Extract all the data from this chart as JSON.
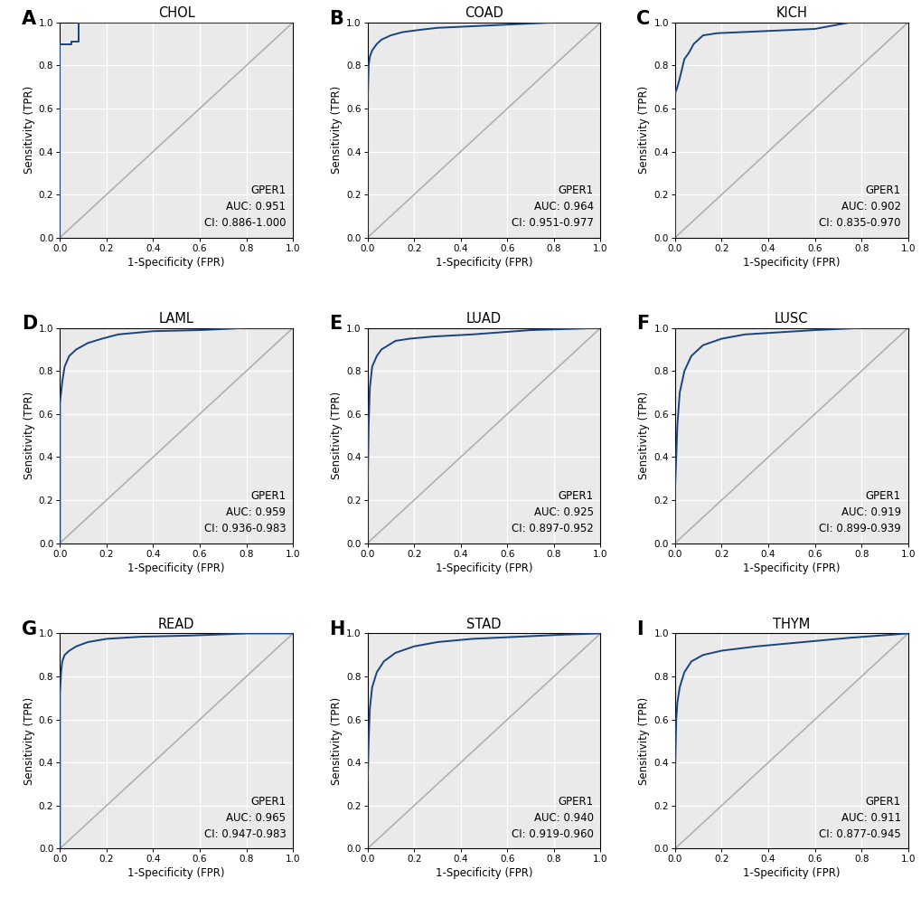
{
  "panels": [
    {
      "label": "A",
      "title": "CHOL",
      "auc": "0.951",
      "ci": "0.886-1.000",
      "roc_fpr": [
        0.0,
        0.0,
        0.0,
        0.0,
        0.05,
        0.05,
        0.08,
        0.08,
        0.25,
        0.25,
        1.0
      ],
      "roc_tpr": [
        0.0,
        0.55,
        0.78,
        0.9,
        0.9,
        0.91,
        0.91,
        1.0,
        1.0,
        1.0,
        1.0
      ]
    },
    {
      "label": "B",
      "title": "COAD",
      "auc": "0.964",
      "ci": "0.951-0.977",
      "roc_fpr": [
        0.0,
        0.0,
        0.003,
        0.005,
        0.01,
        0.02,
        0.04,
        0.06,
        0.1,
        0.15,
        0.22,
        0.3,
        0.5,
        0.8,
        1.0
      ],
      "roc_tpr": [
        0.0,
        0.6,
        0.72,
        0.8,
        0.84,
        0.87,
        0.9,
        0.92,
        0.94,
        0.955,
        0.965,
        0.975,
        0.985,
        1.0,
        1.0
      ]
    },
    {
      "label": "C",
      "title": "KICH",
      "auc": "0.902",
      "ci": "0.835-0.970",
      "roc_fpr": [
        0.0,
        0.0,
        0.01,
        0.02,
        0.04,
        0.06,
        0.08,
        0.12,
        0.18,
        0.6,
        0.75,
        1.0
      ],
      "roc_tpr": [
        0.0,
        0.67,
        0.7,
        0.74,
        0.83,
        0.86,
        0.9,
        0.94,
        0.95,
        0.97,
        1.0,
        1.0
      ]
    },
    {
      "label": "D",
      "title": "LAML",
      "auc": "0.959",
      "ci": "0.936-0.983",
      "roc_fpr": [
        0.0,
        0.0,
        0.01,
        0.02,
        0.04,
        0.07,
        0.12,
        0.18,
        0.25,
        0.4,
        0.6,
        0.8,
        1.0
      ],
      "roc_tpr": [
        0.0,
        0.65,
        0.75,
        0.82,
        0.87,
        0.9,
        0.93,
        0.95,
        0.97,
        0.985,
        0.99,
        1.0,
        1.0
      ]
    },
    {
      "label": "E",
      "title": "LUAD",
      "auc": "0.925",
      "ci": "0.897-0.952",
      "roc_fpr": [
        0.0,
        0.0,
        0.005,
        0.01,
        0.02,
        0.04,
        0.06,
        0.09,
        0.12,
        0.18,
        0.28,
        0.45,
        0.7,
        1.0
      ],
      "roc_tpr": [
        0.0,
        0.2,
        0.55,
        0.72,
        0.82,
        0.87,
        0.9,
        0.92,
        0.94,
        0.95,
        0.96,
        0.97,
        0.99,
        1.0
      ]
    },
    {
      "label": "F",
      "title": "LUSC",
      "auc": "0.919",
      "ci": "0.899-0.939",
      "roc_fpr": [
        0.0,
        0.0,
        0.01,
        0.02,
        0.04,
        0.07,
        0.12,
        0.2,
        0.3,
        0.45,
        0.6,
        0.8,
        1.0
      ],
      "roc_tpr": [
        0.0,
        0.25,
        0.55,
        0.7,
        0.8,
        0.87,
        0.92,
        0.95,
        0.97,
        0.98,
        0.99,
        1.0,
        1.0
      ]
    },
    {
      "label": "G",
      "title": "READ",
      "auc": "0.965",
      "ci": "0.947-0.983",
      "roc_fpr": [
        0.0,
        0.0,
        0.005,
        0.01,
        0.02,
        0.04,
        0.07,
        0.12,
        0.2,
        0.35,
        0.55,
        0.8,
        1.0
      ],
      "roc_tpr": [
        0.0,
        0.72,
        0.82,
        0.87,
        0.9,
        0.92,
        0.94,
        0.96,
        0.975,
        0.985,
        0.99,
        1.0,
        1.0
      ]
    },
    {
      "label": "H",
      "title": "STAD",
      "auc": "0.940",
      "ci": "0.919-0.960",
      "roc_fpr": [
        0.0,
        0.0,
        0.005,
        0.01,
        0.02,
        0.04,
        0.07,
        0.12,
        0.2,
        0.3,
        0.45,
        0.65,
        0.85,
        1.0
      ],
      "roc_tpr": [
        0.0,
        0.28,
        0.5,
        0.65,
        0.75,
        0.82,
        0.87,
        0.91,
        0.94,
        0.96,
        0.975,
        0.985,
        0.995,
        1.0
      ]
    },
    {
      "label": "I",
      "title": "THYM",
      "auc": "0.911",
      "ci": "0.877-0.945",
      "roc_fpr": [
        0.0,
        0.0,
        0.005,
        0.01,
        0.02,
        0.04,
        0.07,
        0.12,
        0.2,
        0.35,
        0.55,
        0.75,
        1.0
      ],
      "roc_tpr": [
        0.0,
        0.35,
        0.6,
        0.68,
        0.75,
        0.82,
        0.87,
        0.9,
        0.92,
        0.94,
        0.96,
        0.98,
        1.0
      ]
    }
  ],
  "line_color": "#1a4480",
  "diag_color": "#b0b0b0",
  "axes_face_color": "#eaeaea",
  "fig_face_color": "#ffffff",
  "xlabel": "1-Specificity (FPR)",
  "ylabel": "Sensitivity (TPR)",
  "tick_labels": [
    0.0,
    0.2,
    0.4,
    0.6,
    0.8,
    1.0
  ],
  "annotation_label": "GPER1",
  "annotation_fontsize": 8.5,
  "title_fontsize": 10.5,
  "axis_label_fontsize": 8.5,
  "tick_fontsize": 7.5,
  "panel_label_fontsize": 15
}
